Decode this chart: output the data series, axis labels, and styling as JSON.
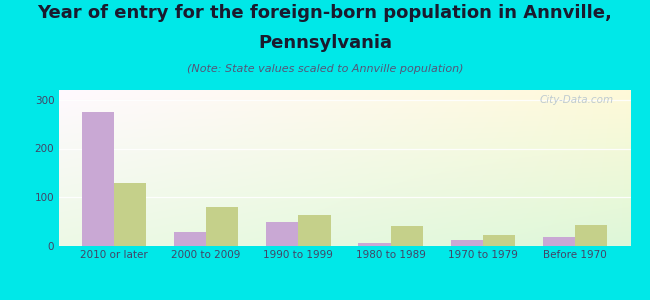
{
  "title_line1": "Year of entry for the foreign-born population in Annville,",
  "title_line2": "Pennsylvania",
  "subtitle": "(Note: State values scaled to Annville population)",
  "categories": [
    "2010 or later",
    "2000 to 2009",
    "1990 to 1999",
    "1980 to 1989",
    "1970 to 1979",
    "Before 1970"
  ],
  "annville_values": [
    275,
    28,
    50,
    7,
    12,
    18
  ],
  "pennsylvania_values": [
    130,
    80,
    63,
    42,
    23,
    43
  ],
  "annville_color": "#c9a8d4",
  "pennsylvania_color": "#c5d08a",
  "background_color": "#00e8e8",
  "bar_width": 0.35,
  "ylim": [
    0,
    320
  ],
  "yticks": [
    0,
    100,
    200,
    300
  ],
  "watermark": "City-Data.com",
  "title_fontsize": 13,
  "subtitle_fontsize": 8,
  "tick_fontsize": 7.5,
  "legend_fontsize": 9,
  "title_color": "#1a1a2e",
  "subtitle_color": "#555577",
  "tick_color": "#444466",
  "watermark_color": "#aabbcc"
}
